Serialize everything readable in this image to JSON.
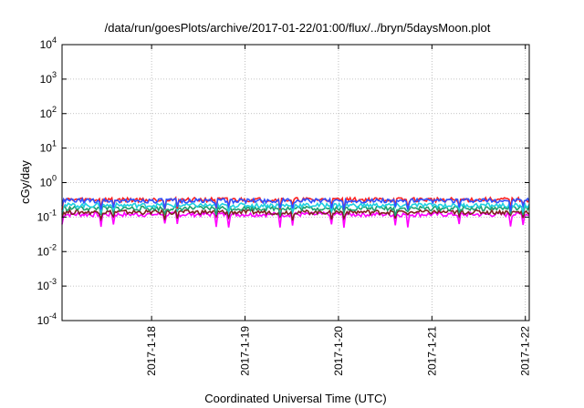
{
  "chart_data": {
    "type": "line",
    "title": "/data/run/goesPlots/archive/2017-01-22/01:00/flux/../bryn/5daysMoon.plot",
    "xlabel": "Coordinated Universal Time (UTC)",
    "ylabel": "cGy/day",
    "y_scale": "log",
    "ylim": [
      0.0001,
      10000
    ],
    "y_ticks": [
      {
        "base": "10",
        "exp": "-4"
      },
      {
        "base": "10",
        "exp": "-3"
      },
      {
        "base": "10",
        "exp": "-2"
      },
      {
        "base": "10",
        "exp": "-1"
      },
      {
        "base": "10",
        "exp": "0"
      },
      {
        "base": "10",
        "exp": "1"
      },
      {
        "base": "10",
        "exp": "2"
      },
      {
        "base": "10",
        "exp": "3"
      },
      {
        "base": "10",
        "exp": "4"
      }
    ],
    "xlim": [
      "2017-01-17 01:00",
      "2017-01-22 01:00"
    ],
    "x_ticks": [
      "2017-1-18",
      "2017-1-19",
      "2017-1-20",
      "2017-1-21",
      "2017-1-22"
    ],
    "grid": true,
    "series": [
      {
        "color": "#ff00ff",
        "level": 0.12,
        "dip": 0.06
      },
      {
        "color": "#7f2020",
        "level": 0.14,
        "dip": 0.1
      },
      {
        "color": "#1f9f6f",
        "level": 0.18,
        "dip": 0.13
      },
      {
        "color": "#20d0e0",
        "level": 0.22,
        "dip": 0.16
      },
      {
        "color": "#ff2020",
        "level": 0.32,
        "dip": 0.2
      },
      {
        "color": "#3050ff",
        "level": 0.3,
        "dip": 0.18
      }
    ]
  }
}
